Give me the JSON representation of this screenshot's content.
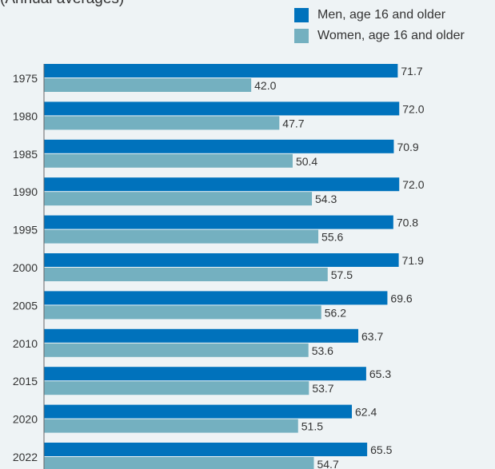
{
  "chart_data": {
    "type": "bar",
    "orientation": "horizontal",
    "subtitle": "(Annual averages)",
    "categories": [
      "1975",
      "1980",
      "1985",
      "1990",
      "1995",
      "2000",
      "2005",
      "2010",
      "2015",
      "2020",
      "2022"
    ],
    "series": [
      {
        "name": "Men, age 16 and older",
        "color": "#0072bc",
        "values": [
          71.7,
          72.0,
          70.9,
          72.0,
          70.8,
          71.9,
          69.6,
          63.7,
          65.3,
          62.4,
          65.5
        ]
      },
      {
        "name": "Women, age 16 and older",
        "color": "#74b0c0",
        "values": [
          42.0,
          47.7,
          50.4,
          54.3,
          55.6,
          57.5,
          56.2,
          53.6,
          53.7,
          51.5,
          54.7
        ]
      }
    ],
    "value_labels": {
      "men": [
        "71.7",
        "72.0",
        "70.9",
        "72.0",
        "70.8",
        "71.9",
        "69.6",
        "63.7",
        "65.3",
        "62.4",
        "65.5"
      ],
      "women": [
        "42.0",
        "47.7",
        "50.4",
        "54.3",
        "55.6",
        "57.5",
        "56.2",
        "53.6",
        "53.7",
        "51.5",
        "54.7"
      ]
    },
    "legend_position": "top-right",
    "grid": false,
    "value_axis_visible": false
  }
}
